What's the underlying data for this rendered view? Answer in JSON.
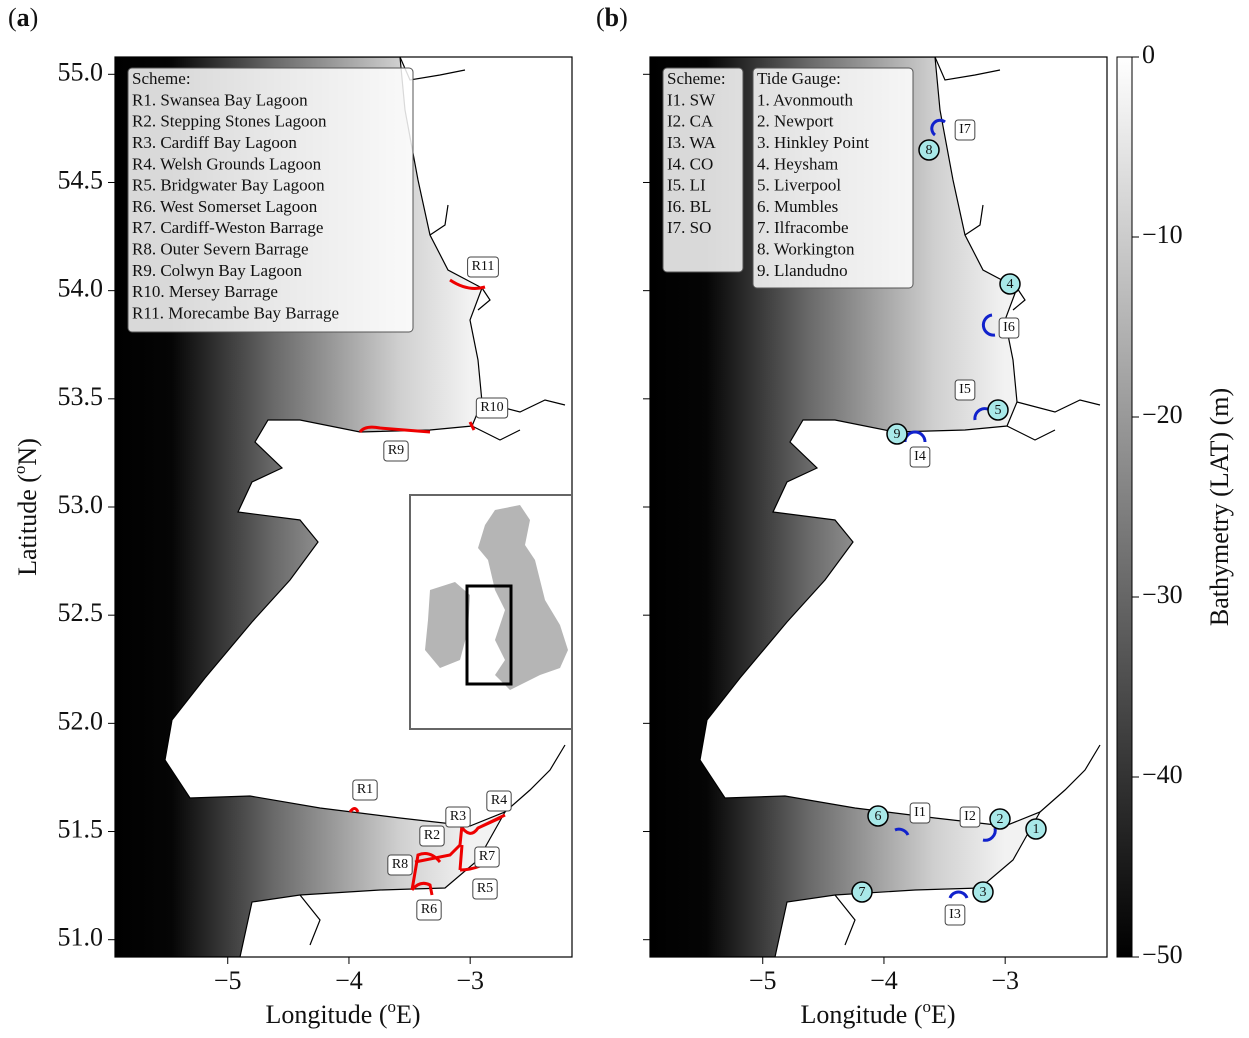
{
  "axes": {
    "xlim": [
      -5.93,
      -2.16
    ],
    "ylim": [
      50.92,
      55.08
    ],
    "xticks": [
      {
        "value": -5,
        "label": "−5"
      },
      {
        "value": -4,
        "label": "−4"
      },
      {
        "value": -3,
        "label": "−3"
      }
    ],
    "yticks": [
      {
        "value": 55,
        "label": "55.0"
      },
      {
        "value": 54.5,
        "label": "54.5"
      },
      {
        "value": 54,
        "label": "54.0"
      },
      {
        "value": 53.5,
        "label": "53.5"
      },
      {
        "value": 53,
        "label": "53.0"
      },
      {
        "value": 52.5,
        "label": "52.5"
      },
      {
        "value": 52,
        "label": "52.0"
      },
      {
        "value": 51.5,
        "label": "51.5"
      },
      {
        "value": 51,
        "label": "51.0"
      }
    ],
    "xlabel": [
      "Longitude (",
      "o",
      "E)"
    ],
    "ylabel": [
      "Latitude (",
      "o",
      "N)"
    ]
  },
  "panels": [
    {
      "label": [
        "(",
        "a",
        ")"
      ],
      "legend": {
        "title": "Scheme:",
        "items": [
          "R1. Swansea Bay Lagoon",
          "R2. Stepping Stones Lagoon",
          "R3. Cardiff Bay Lagoon",
          "R4. Welsh Grounds Lagoon",
          "R5. Bridgwater Bay Lagoon",
          "R6. West Somerset Lagoon",
          "R7. Cardiff-Weston Barrage",
          "R8. Outer Severn Barrage",
          "R9. Colwyn Bay Lagoon",
          "R10. Mersey Barrage",
          "R11. Morecambe Bay Barrage"
        ]
      },
      "markers": [
        "R1",
        "R2",
        "R3",
        "R4",
        "R5",
        "R6",
        "R7",
        "R8",
        "R9",
        "R10",
        "R11"
      ]
    },
    {
      "label": [
        "(",
        "b",
        ")"
      ],
      "legend": {
        "title": "Scheme:",
        "items": [
          "I1. SW",
          "I2. CA",
          "I3. WA",
          "I4. CO",
          "I5. LI",
          "I6. BL",
          "I7. SO"
        ]
      },
      "gauge_legend": {
        "title": "Tide Gauge:",
        "items": [
          "1. Avonmouth",
          "2. Newport",
          "3. Hinkley Point",
          "4. Heysham",
          "5. Liverpool",
          "6. Mumbles",
          "7. Ilfracombe",
          "8. Workington",
          "9. Llandudno"
        ]
      },
      "markers": [
        "I1",
        "I2",
        "I3",
        "I4",
        "I5",
        "I6",
        "I7"
      ],
      "gauges": [
        "1",
        "2",
        "3",
        "4",
        "5",
        "6",
        "7",
        "8",
        "9"
      ]
    }
  ],
  "colorbar": {
    "label": "Bathymetry (LAT) (m)",
    "clim": [
      -50,
      0
    ],
    "ticks": [
      0,
      {
        "value": -10,
        "label": "−10"
      },
      {
        "value": -20,
        "label": "−20"
      },
      {
        "value": -30,
        "label": "−30"
      },
      {
        "value": -40,
        "label": "−40"
      },
      {
        "value": -50,
        "label": "−50"
      }
    ]
  }
}
